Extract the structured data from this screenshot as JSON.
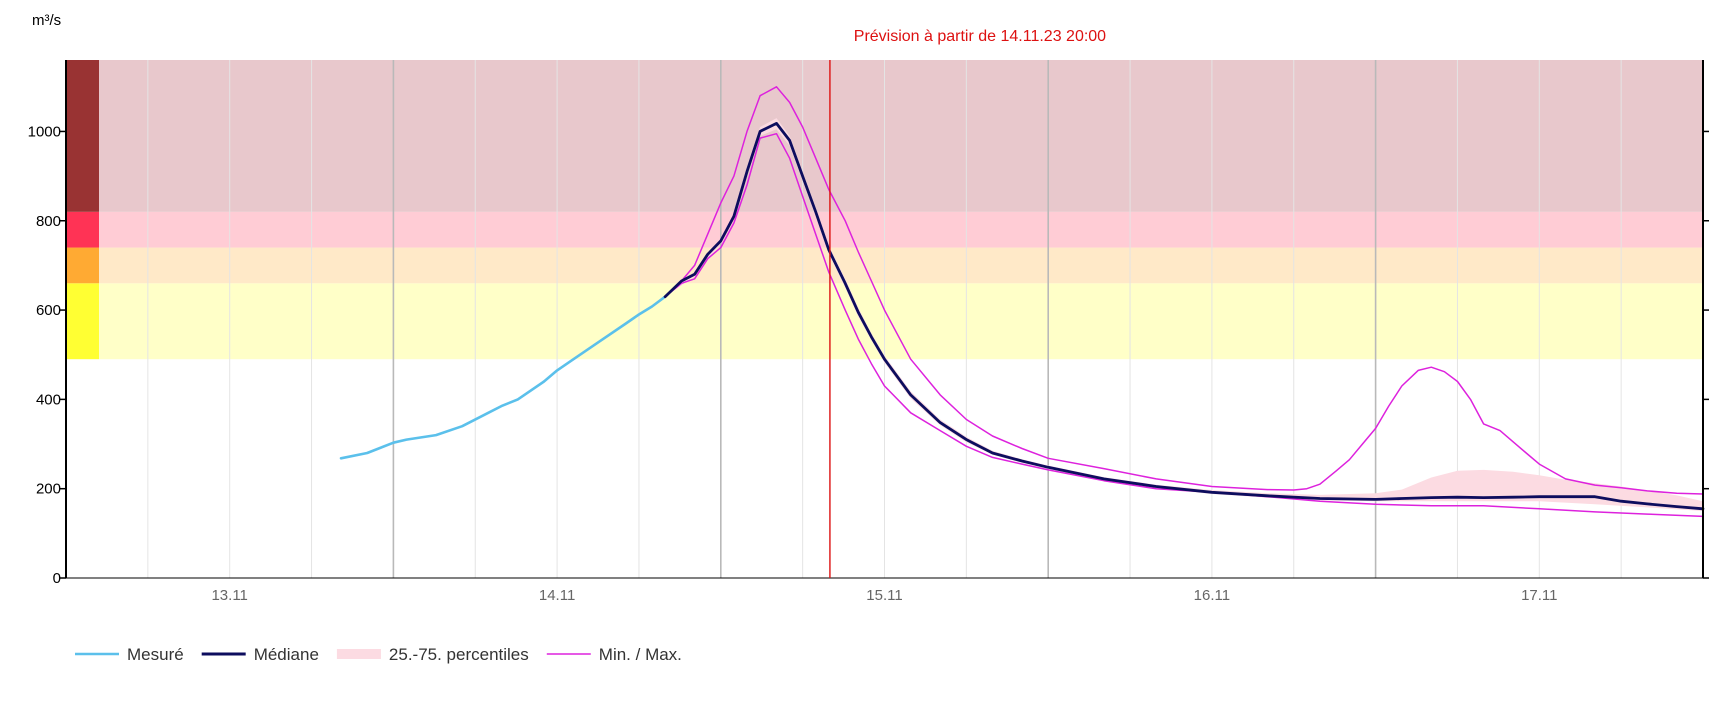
{
  "chart_data": {
    "type": "line",
    "title": "",
    "y_unit": "m³/s",
    "ylabel": "",
    "xlabel": "",
    "forecast_note": "Prévision à partir de 14.11.23 20:00",
    "forecast_start_day": 14.8333,
    "ylim": [
      0,
      1160
    ],
    "yticks": [
      0,
      200,
      400,
      600,
      800,
      1000
    ],
    "xlim": [
      12.5,
      17.5
    ],
    "xticks": [
      {
        "x": 13,
        "label": "13.11"
      },
      {
        "x": 14,
        "label": "14.11"
      },
      {
        "x": 15,
        "label": "15.11"
      },
      {
        "x": 16,
        "label": "16.11"
      },
      {
        "x": 17,
        "label": "17.11"
      }
    ],
    "danger_levels": [
      {
        "from": 490,
        "to": 660,
        "bar_color": "#ffff33",
        "band_color": "#ffffc8"
      },
      {
        "from": 660,
        "to": 740,
        "bar_color": "#ffaa33",
        "band_color": "#ffe9c8"
      },
      {
        "from": 740,
        "to": 820,
        "bar_color": "#ff3355",
        "band_color": "#ffccd5"
      },
      {
        "from": 820,
        "to": 1160,
        "bar_color": "#993333",
        "band_color": "#e8c8cc"
      }
    ],
    "colors": {
      "measured": "#5bc0eb",
      "median": "#0d0d5e",
      "percentile": "#fcdbe2",
      "minmax": "#dd22dd",
      "forecast_line": "#dd1111"
    },
    "legend": [
      {
        "key": "measured",
        "label": "Mesuré"
      },
      {
        "key": "median",
        "label": "Médiane"
      },
      {
        "key": "percentile",
        "label": "25.-75. percentiles"
      },
      {
        "key": "minmax",
        "label": "Min. / Max."
      }
    ],
    "series": {
      "measured": {
        "x": [
          13.34,
          13.42,
          13.5,
          13.54,
          13.63,
          13.71,
          13.79,
          13.83,
          13.88,
          13.96,
          14.0,
          14.04,
          14.13,
          14.21,
          14.25,
          14.29,
          14.33
        ],
        "y": [
          268,
          280,
          303,
          310,
          320,
          340,
          370,
          385,
          400,
          440,
          465,
          485,
          530,
          570,
          590,
          608,
          630
        ]
      },
      "median": {
        "x": [
          14.33,
          14.38,
          14.42,
          14.46,
          14.5,
          14.54,
          14.58,
          14.62,
          14.67,
          14.71,
          14.75,
          14.79,
          14.83,
          14.88,
          14.92,
          14.96,
          15.0,
          15.08,
          15.17,
          15.25,
          15.33,
          15.42,
          15.5,
          15.67,
          15.83,
          16.0,
          16.17,
          16.33,
          16.5,
          16.58,
          16.67,
          16.75,
          16.83,
          16.92,
          17.0,
          17.08,
          17.17,
          17.25,
          17.33,
          17.42,
          17.5
        ],
        "y": [
          630,
          665,
          680,
          725,
          755,
          810,
          910,
          1000,
          1018,
          980,
          900,
          820,
          735,
          660,
          595,
          540,
          490,
          410,
          348,
          310,
          280,
          262,
          248,
          222,
          205,
          192,
          184,
          178,
          176,
          178,
          180,
          181,
          180,
          181,
          182,
          182,
          182,
          172,
          166,
          160,
          155
        ]
      },
      "minmax_upper": {
        "x": [
          14.33,
          14.38,
          14.42,
          14.46,
          14.5,
          14.54,
          14.58,
          14.62,
          14.67,
          14.71,
          14.75,
          14.79,
          14.83,
          14.88,
          14.92,
          14.96,
          15.0,
          15.08,
          15.17,
          15.25,
          15.33,
          15.42,
          15.5,
          15.67,
          15.83,
          16.0,
          16.17,
          16.25,
          16.29,
          16.33,
          16.38,
          16.42,
          16.46,
          16.5,
          16.54,
          16.58,
          16.63,
          16.67,
          16.71,
          16.75,
          16.79,
          16.83,
          16.88,
          16.92,
          16.96,
          17.0,
          17.08,
          17.17,
          17.25,
          17.33,
          17.42,
          17.5
        ],
        "y": [
          630,
          665,
          700,
          770,
          840,
          900,
          1000,
          1080,
          1100,
          1065,
          1010,
          940,
          870,
          800,
          730,
          665,
          600,
          490,
          410,
          355,
          318,
          290,
          268,
          245,
          222,
          205,
          198,
          197,
          200,
          210,
          240,
          265,
          300,
          335,
          385,
          430,
          465,
          472,
          462,
          440,
          400,
          345,
          330,
          305,
          280,
          255,
          222,
          208,
          202,
          195,
          190,
          188
        ]
      },
      "minmax_lower": {
        "x": [
          14.33,
          14.38,
          14.42,
          14.46,
          14.5,
          14.54,
          14.58,
          14.62,
          14.67,
          14.71,
          14.75,
          14.79,
          14.83,
          14.88,
          14.92,
          14.96,
          15.0,
          15.08,
          15.17,
          15.25,
          15.33,
          15.42,
          15.5,
          15.67,
          15.83,
          16.0,
          16.17,
          16.33,
          16.5,
          16.67,
          16.83,
          17.0,
          17.17,
          17.33,
          17.5
        ],
        "y": [
          630,
          660,
          670,
          715,
          740,
          795,
          880,
          985,
          995,
          940,
          855,
          770,
          685,
          600,
          535,
          480,
          430,
          370,
          330,
          295,
          270,
          255,
          242,
          218,
          200,
          192,
          182,
          172,
          165,
          162,
          162,
          155,
          148,
          143,
          138
        ]
      },
      "percentile_upper": {
        "x": [
          14.33,
          14.42,
          14.5,
          14.54,
          14.58,
          14.62,
          14.67,
          14.71,
          14.75,
          14.79,
          14.83,
          14.88,
          14.92,
          14.96,
          15.0,
          15.08,
          15.17,
          15.25,
          15.33,
          15.42,
          15.5,
          15.67,
          15.83,
          16.0,
          16.17,
          16.33,
          16.5,
          16.58,
          16.67,
          16.75,
          16.83,
          16.92,
          17.0,
          17.08,
          17.17,
          17.25,
          17.33,
          17.42,
          17.5
        ],
        "y": [
          630,
          685,
          760,
          815,
          915,
          1010,
          1030,
          990,
          910,
          830,
          745,
          670,
          605,
          548,
          498,
          418,
          355,
          316,
          285,
          266,
          252,
          226,
          209,
          197,
          190,
          186,
          190,
          198,
          225,
          240,
          242,
          238,
          230,
          220,
          212,
          205,
          196,
          185,
          172
        ]
      },
      "percentile_lower": {
        "x": [
          14.33,
          14.42,
          14.5,
          14.54,
          14.58,
          14.62,
          14.67,
          14.71,
          14.75,
          14.79,
          14.83,
          14.88,
          14.92,
          14.96,
          15.0,
          15.08,
          15.17,
          15.25,
          15.33,
          15.42,
          15.5,
          15.67,
          15.83,
          16.0,
          16.17,
          16.33,
          16.5,
          16.67,
          16.83,
          17.0,
          17.17,
          17.33,
          17.5
        ],
        "y": [
          630,
          675,
          750,
          805,
          905,
          990,
          1005,
          968,
          890,
          810,
          725,
          650,
          585,
          532,
          482,
          402,
          342,
          304,
          276,
          258,
          244,
          218,
          201,
          188,
          180,
          174,
          172,
          172,
          172,
          172,
          165,
          158,
          150
        ]
      }
    }
  }
}
